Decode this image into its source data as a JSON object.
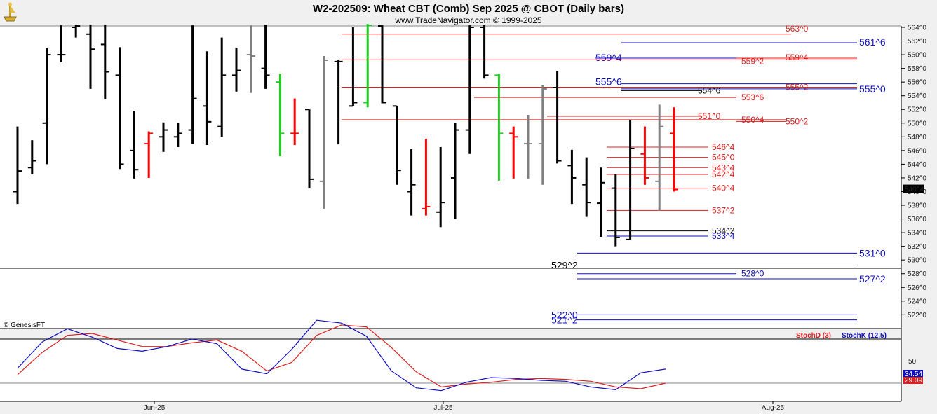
{
  "header": {
    "title": "W2-202509:  Wheat CBT (Comb) Sep 2025 @ CBOT  (Daily bars)",
    "source": "www.TradeNavigator.com © 1999-2025",
    "copyright": "© GenesisFT"
  },
  "colors": {
    "up_bar": "#000000",
    "down_bar": "#ff0000",
    "neutral_bar": "#808080",
    "highlight_bar": "#22cc22",
    "level_red": "#e02020",
    "level_blue": "#1010c0",
    "level_black": "#000000",
    "stochD": "#e02020",
    "stochK": "#1010c0"
  },
  "chart_data": [
    {
      "type": "ohlc",
      "title": "W2-202509:  Wheat CBT (Comb) Sep 2025 @ CBOT  (Daily bars)",
      "y_ticks": [
        "564^0",
        "562^0",
        "560^0",
        "558^0",
        "556^0",
        "554^0",
        "552^0",
        "550^0",
        "548^0",
        "546^0",
        "544^0",
        "542^0",
        "540^0",
        "538^0",
        "536^0",
        "534^0",
        "532^0",
        "530^0",
        "528^0",
        "526^0",
        "524^0",
        "522^0"
      ],
      "ylim": [
        520.8,
        564.7
      ],
      "last_price_label": "540^4",
      "x_labels": [
        "Jun-25",
        "Jul-25",
        "Aug-25"
      ],
      "bars": [
        {
          "date": "2025-05-19",
          "open": 540.0,
          "high": 549.5,
          "low": 538.2,
          "close": 543.0,
          "c": "up"
        },
        {
          "date": "2025-05-20",
          "open": 543.5,
          "high": 547.5,
          "low": 542.5,
          "close": 544.5,
          "c": "up"
        },
        {
          "date": "2025-05-21",
          "open": 550.0,
          "high": 561.0,
          "low": 544.0,
          "close": 560.0,
          "c": "up"
        },
        {
          "date": "2025-05-22",
          "open": 560.0,
          "high": 564.3,
          "low": 558.9,
          "close": 560.0,
          "c": "up"
        },
        {
          "date": "2025-05-23",
          "open": 564.0,
          "high": 564.4,
          "low": 562.5,
          "close": 564.2,
          "c": "up"
        },
        {
          "date": "2025-05-27",
          "open": 563.0,
          "high": 564.4,
          "low": 555.0,
          "close": 560.8,
          "c": "up"
        },
        {
          "date": "2025-05-28",
          "open": 561.5,
          "high": 564.4,
          "low": 553.5,
          "close": 557.5,
          "c": "up"
        },
        {
          "date": "2025-05-29",
          "open": 557.0,
          "high": 561.1,
          "low": 543.3,
          "close": 544.0,
          "c": "up"
        },
        {
          "date": "2025-05-30",
          "open": 546.0,
          "high": 551.8,
          "low": 541.9,
          "close": 543.2,
          "c": "up"
        },
        {
          "date": "2025-06-02",
          "open": 547.0,
          "high": 548.8,
          "low": 542.0,
          "close": 548.5,
          "c": "down"
        },
        {
          "date": "2025-06-03",
          "open": 548.0,
          "high": 550.1,
          "low": 545.8,
          "close": 549.0,
          "c": "up"
        },
        {
          "date": "2025-06-04",
          "open": 548.0,
          "high": 550.0,
          "low": 546.5,
          "close": 548.5,
          "c": "up"
        },
        {
          "date": "2025-06-05",
          "open": 549.0,
          "high": 564.3,
          "low": 547.0,
          "close": 553.6,
          "c": "up"
        },
        {
          "date": "2025-06-06",
          "open": 552.5,
          "high": 560.5,
          "low": 546.8,
          "close": 550.2,
          "c": "up"
        },
        {
          "date": "2025-06-09",
          "open": 549.5,
          "high": 562.5,
          "low": 548.0,
          "close": 557.0,
          "c": "up"
        },
        {
          "date": "2025-06-10",
          "open": 557.0,
          "high": 561.0,
          "low": 554.6,
          "close": 557.7,
          "c": "up"
        },
        {
          "date": "2025-06-11",
          "open": 560.0,
          "high": 564.3,
          "low": 554.4,
          "close": 559.8,
          "c": "neutral"
        },
        {
          "date": "2025-06-12",
          "open": 558.0,
          "high": 564.4,
          "low": 555.0,
          "close": 557.0,
          "c": "up"
        },
        {
          "date": "2025-06-13",
          "open": 556.0,
          "high": 557.2,
          "low": 545.2,
          "close": 548.5,
          "c": "highlight"
        },
        {
          "date": "2025-06-16",
          "open": 548.5,
          "high": 553.6,
          "low": 546.8,
          "close": 548.5,
          "c": "down"
        },
        {
          "date": "2025-06-17",
          "open": 552.0,
          "high": 552.0,
          "low": 540.5,
          "close": 541.8,
          "c": "up"
        },
        {
          "date": "2025-06-18",
          "open": 541.5,
          "high": 559.8,
          "low": 537.5,
          "close": 559.2,
          "c": "neutral"
        },
        {
          "date": "2025-06-20",
          "open": 559.0,
          "high": 559.2,
          "low": 546.9,
          "close": 559.0,
          "c": "up"
        },
        {
          "date": "2025-06-23",
          "open": 552.5,
          "high": 564.0,
          "low": 552.5,
          "close": 553.0,
          "c": "up"
        },
        {
          "date": "2025-06-24",
          "open": 553.0,
          "high": 564.5,
          "low": 552.3,
          "close": 564.3,
          "c": "highlight"
        },
        {
          "date": "2025-06-26",
          "open": 564.2,
          "high": 564.3,
          "low": 552.9,
          "close": 553.0,
          "c": "up"
        },
        {
          "date": "2025-06-27",
          "open": 552.5,
          "high": 552.5,
          "low": 541.0,
          "close": 543.1,
          "c": "up"
        },
        {
          "date": "2025-06-30",
          "open": 540.0,
          "high": 546.2,
          "low": 536.5,
          "close": 541.0,
          "c": "up"
        },
        {
          "date": "2025-07-01",
          "open": 537.5,
          "high": 547.7,
          "low": 536.5,
          "close": 537.8,
          "c": "down"
        },
        {
          "date": "2025-07-02",
          "open": 537.0,
          "high": 546.5,
          "low": 534.8,
          "close": 538.4,
          "c": "up"
        },
        {
          "date": "2025-07-03",
          "open": 542.0,
          "high": 550.0,
          "low": 536.0,
          "close": 549.0,
          "c": "up"
        },
        {
          "date": "2025-07-07",
          "open": 549.0,
          "high": 564.3,
          "low": 545.5,
          "close": 564.0,
          "c": "up"
        },
        {
          "date": "2025-07-08",
          "open": 564.0,
          "high": 564.4,
          "low": 556.5,
          "close": 557.0,
          "c": "up"
        },
        {
          "date": "2025-07-09",
          "open": 557.0,
          "high": 557.2,
          "low": 541.6,
          "close": 548.5,
          "c": "highlight"
        },
        {
          "date": "2025-07-10",
          "open": 548.5,
          "high": 549.5,
          "low": 541.9,
          "close": 548.0,
          "c": "down"
        },
        {
          "date": "2025-07-11",
          "open": 547.0,
          "high": 551.2,
          "low": 541.9,
          "close": 547.0,
          "c": "neutral"
        },
        {
          "date": "2025-07-14",
          "open": 547.0,
          "high": 555.5,
          "low": 541.0,
          "close": 555.0,
          "c": "neutral"
        },
        {
          "date": "2025-07-15",
          "open": 555.2,
          "high": 557.6,
          "low": 544.1,
          "close": 544.5,
          "c": "up"
        },
        {
          "date": "2025-07-16",
          "open": 543.8,
          "high": 546.1,
          "low": 538.2,
          "close": 542.0,
          "c": "up"
        },
        {
          "date": "2025-07-17",
          "open": 541.0,
          "high": 545.0,
          "low": 536.3,
          "close": 538.4,
          "c": "up"
        },
        {
          "date": "2025-07-18",
          "open": 538.3,
          "high": 543.5,
          "low": 533.4,
          "close": 541.3,
          "c": "up"
        },
        {
          "date": "2025-07-21",
          "open": 540.5,
          "high": 542.6,
          "low": 532.0,
          "close": 533.3,
          "c": "up"
        },
        {
          "date": "2025-07-22",
          "open": 533.0,
          "high": 550.5,
          "low": 533.0,
          "close": 546.3,
          "c": "up"
        },
        {
          "date": "2025-07-23",
          "open": 545.5,
          "high": 549.5,
          "low": 541.0,
          "close": 542.0,
          "c": "down"
        },
        {
          "date": "2025-07-24",
          "open": 541.5,
          "high": 552.7,
          "low": 537.2,
          "close": 549.5,
          "c": "neutral"
        },
        {
          "date": "2025-07-25",
          "open": 548.5,
          "high": 552.3,
          "low": 540.0,
          "close": 540.3,
          "c": "down"
        }
      ],
      "levels": [
        {
          "price": "563^0",
          "value": 563.0,
          "color": "red"
        },
        {
          "price": "561^6",
          "value": 561.75,
          "color": "blue"
        },
        {
          "price": "559^4",
          "value": 559.5,
          "color": "blue"
        },
        {
          "price": "559^2",
          "value": 559.25,
          "color": "red"
        },
        {
          "price": "559^4",
          "value": 559.5,
          "color": "red"
        },
        {
          "price": "555^6",
          "value": 555.75,
          "color": "blue"
        },
        {
          "price": "555^2",
          "value": 555.25,
          "color": "red"
        },
        {
          "price": "555^0",
          "value": 555.0,
          "color": "blue"
        },
        {
          "price": "554^6",
          "value": 554.75,
          "color": "black"
        },
        {
          "price": "553^6",
          "value": 553.75,
          "color": "red"
        },
        {
          "price": "551^0",
          "value": 551.0,
          "color": "red"
        },
        {
          "price": "550^4",
          "value": 550.5,
          "color": "red"
        },
        {
          "price": "550^2",
          "value": 550.25,
          "color": "red"
        },
        {
          "price": "546^4",
          "value": 546.5,
          "color": "red"
        },
        {
          "price": "545^0",
          "value": 545.0,
          "color": "red"
        },
        {
          "price": "543^4",
          "value": 543.5,
          "color": "red"
        },
        {
          "price": "542^4",
          "value": 542.5,
          "color": "red"
        },
        {
          "price": "540^4",
          "value": 540.5,
          "color": "red"
        },
        {
          "price": "537^2",
          "value": 537.25,
          "color": "red"
        },
        {
          "price": "534^2",
          "value": 534.25,
          "color": "black"
        },
        {
          "price": "533^4",
          "value": 533.5,
          "color": "blue"
        },
        {
          "price": "531^0",
          "value": 531.0,
          "color": "blue"
        },
        {
          "price": "529^2",
          "value": 529.25,
          "color": "black"
        },
        {
          "price": "528^0",
          "value": 528.0,
          "color": "blue"
        },
        {
          "price": "527^2",
          "value": 527.25,
          "color": "blue"
        },
        {
          "price": "522^0",
          "value": 522.0,
          "color": "blue"
        },
        {
          "price": "521^2",
          "value": 521.25,
          "color": "blue"
        }
      ]
    },
    {
      "type": "line",
      "legend": [
        "StochD (3)",
        "StochK (12,5)"
      ],
      "y_tick": "50",
      "last_values": {
        "k": "34.54",
        "d": "29.09"
      },
      "series": [
        {
          "name": "StochD (3)",
          "values": [
            29,
            53,
            71,
            73,
            66,
            59,
            59,
            63,
            66,
            54,
            33,
            42,
            71,
            82,
            80,
            58,
            32,
            16,
            19,
            21,
            24,
            25,
            24,
            22,
            16,
            14,
            20
          ]
        },
        {
          "name": "StochK (12,5)",
          "values": [
            36,
            64,
            78,
            69,
            57,
            54,
            59,
            67,
            62,
            35,
            30,
            56,
            87,
            84,
            70,
            33,
            15,
            12,
            21,
            26,
            25,
            23,
            22,
            16,
            13,
            31,
            35
          ]
        }
      ]
    }
  ]
}
